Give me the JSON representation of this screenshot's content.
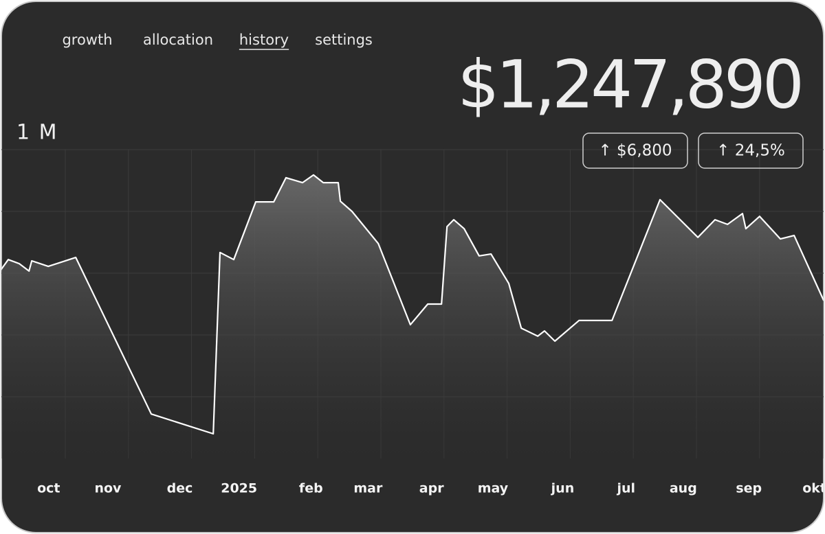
{
  "nav": {
    "tabs": [
      "growth",
      "allocation",
      "history",
      "settings"
    ],
    "active_index": 2
  },
  "balance": "$1,247,890",
  "change": {
    "amount": "↑ $6,800",
    "percent": "↑ 24,5%"
  },
  "chart_data": {
    "type": "area",
    "x": [
      0,
      3.9,
      9.1,
      13.7,
      15,
      22.8,
      35.8,
      71.5,
      100.8,
      104,
      110.5,
      120.9,
      129.4,
      135.2,
      143,
      148.2,
      152.8,
      159.9,
      160.9,
      166.4,
      178.8,
      194,
      202.2,
      208.7,
      211.3,
      214.5,
      219.4,
      226.5,
      232.1,
      240.5,
      246.4,
      254.2,
      257.4,
      262.3,
      273.7,
      289.3,
      312,
      329.9,
      338,
      343.9,
      351,
      352.6,
      359.1,
      368.9,
      375.4,
      389.4
    ],
    "values": [
      607000,
      644000,
      631000,
      607000,
      640000,
      622000,
      651000,
      144000,
      80000,
      667000,
      644000,
      831000,
      831000,
      909000,
      893000,
      918000,
      893000,
      893000,
      833000,
      800000,
      696000,
      433000,
      500000,
      500000,
      751000,
      773000,
      744000,
      656000,
      662000,
      567000,
      422000,
      396000,
      413000,
      380000,
      447000,
      447000,
      838000,
      716000,
      773000,
      758000,
      793000,
      744000,
      784000,
      711000,
      722000,
      511000
    ],
    "color": "#ffffff",
    "xlim": [
      0,
      390
    ],
    "xticks": [
      {
        "value": 23,
        "label": "oct"
      },
      {
        "value": 51,
        "label": "nov"
      },
      {
        "value": 85,
        "label": "dec"
      },
      {
        "value": 113,
        "label": "2025"
      },
      {
        "value": 147,
        "label": "feb"
      },
      {
        "value": 174,
        "label": "mar"
      },
      {
        "value": 204,
        "label": "apr"
      },
      {
        "value": 233,
        "label": "may"
      },
      {
        "value": 266,
        "label": "jun"
      },
      {
        "value": 296,
        "label": "jul"
      },
      {
        "value": 323,
        "label": "aug"
      },
      {
        "value": 354,
        "label": "sep"
      },
      {
        "value": 385,
        "label": "okt"
      }
    ],
    "ylim": [
      0,
      1000000
    ],
    "yticks": [
      {
        "value": 200000,
        "label": null
      },
      {
        "value": 400000,
        "label": null
      },
      {
        "value": 600000,
        "label": null
      },
      {
        "value": 800000,
        "label": null
      },
      {
        "value": 1000000,
        "label": "1 M"
      }
    ],
    "grid": true
  }
}
